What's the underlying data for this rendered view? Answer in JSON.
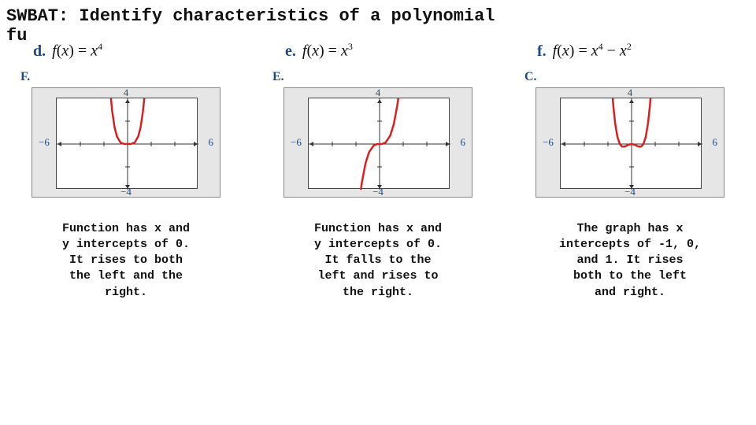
{
  "title": "SWBAT:  Identify characteristics of a polynomial\nfu",
  "columns": [
    {
      "func_letter": "d.",
      "func_html": "<i>f</i>(<i>x</i>) = <i>x</i><sup>4</sup>",
      "graph_letter": "F.",
      "axis": {
        "top": "4",
        "bottom": "−4",
        "left": "−6",
        "right": "6"
      },
      "graph": {
        "type": "curve",
        "domain": [
          -6,
          6
        ],
        "range": [
          -4,
          4
        ],
        "bg": "#e6e6e6",
        "plot_bg": "#ffffff",
        "axis_color": "#333333",
        "curve_color": "#d82020",
        "curve_width": 2.5,
        "ticks_x": [
          -4,
          -2,
          2,
          4
        ],
        "ticks_y": [
          -2,
          2
        ],
        "points": [
          [
            -1.45,
            4.4
          ],
          [
            -1.3,
            2.86
          ],
          [
            -1.1,
            1.46
          ],
          [
            -0.9,
            0.66
          ],
          [
            -0.6,
            0.13
          ],
          [
            -0.3,
            0.008
          ],
          [
            0,
            0
          ],
          [
            0.3,
            0.008
          ],
          [
            0.6,
            0.13
          ],
          [
            0.9,
            0.66
          ],
          [
            1.1,
            1.46
          ],
          [
            1.3,
            2.86
          ],
          [
            1.45,
            4.4
          ]
        ]
      },
      "desc": "Function has x and\ny intercepts of 0.\nIt rises to both\nthe left and the\nright."
    },
    {
      "func_letter": "e.",
      "func_html": "<i>f</i>(<i>x</i>) = <i>x</i><sup>3</sup>",
      "graph_letter": "E.",
      "axis": {
        "top": "4",
        "bottom": "−4",
        "left": "−6",
        "right": "6"
      },
      "graph": {
        "type": "curve",
        "domain": [
          -6,
          6
        ],
        "range": [
          -4,
          4
        ],
        "bg": "#e6e6e6",
        "plot_bg": "#ffffff",
        "axis_color": "#333333",
        "curve_color": "#d82020",
        "curve_width": 2.5,
        "ticks_x": [
          -4,
          -2,
          2,
          4
        ],
        "ticks_y": [
          -2,
          2
        ],
        "points": [
          [
            -1.65,
            -4.5
          ],
          [
            -1.5,
            -3.38
          ],
          [
            -1.2,
            -1.73
          ],
          [
            -0.9,
            -0.73
          ],
          [
            -0.5,
            -0.125
          ],
          [
            -0.2,
            -0.008
          ],
          [
            0,
            0
          ],
          [
            0.2,
            0.008
          ],
          [
            0.5,
            0.125
          ],
          [
            0.9,
            0.73
          ],
          [
            1.2,
            1.73
          ],
          [
            1.5,
            3.38
          ],
          [
            1.65,
            4.5
          ]
        ]
      },
      "desc": "Function has x and\ny intercepts of 0.\nIt falls to the\nleft and rises to\nthe right."
    },
    {
      "func_letter": "f.",
      "func_html": "<i>f</i>(<i>x</i>) = <i>x</i><sup>4</sup> − <i>x</i><sup>2</sup>",
      "graph_letter": "C.",
      "axis": {
        "top": "4",
        "bottom": "−4",
        "left": "−6",
        "right": "6"
      },
      "graph": {
        "type": "curve",
        "domain": [
          -6,
          6
        ],
        "range": [
          -4,
          4
        ],
        "bg": "#e6e6e6",
        "plot_bg": "#ffffff",
        "axis_color": "#333333",
        "curve_color": "#d82020",
        "curve_width": 2.5,
        "ticks_x": [
          -4,
          -2,
          2,
          4
        ],
        "ticks_y": [
          -2,
          2
        ],
        "points": [
          [
            -1.65,
            4.7
          ],
          [
            -1.55,
            3.37
          ],
          [
            -1.4,
            1.88
          ],
          [
            -1.2,
            0.63
          ],
          [
            -1.0,
            0.0
          ],
          [
            -0.8,
            -0.23
          ],
          [
            -0.6,
            -0.23
          ],
          [
            -0.4,
            -0.134
          ],
          [
            -0.2,
            -0.038
          ],
          [
            0,
            0
          ],
          [
            0.2,
            -0.038
          ],
          [
            0.4,
            -0.134
          ],
          [
            0.6,
            -0.23
          ],
          [
            0.8,
            -0.23
          ],
          [
            1.0,
            0.0
          ],
          [
            1.2,
            0.63
          ],
          [
            1.4,
            1.88
          ],
          [
            1.55,
            3.37
          ],
          [
            1.65,
            4.7
          ]
        ]
      },
      "desc": "The graph has x\nintercepts of -1, 0,\nand 1.  It rises\nboth to the left\nand right."
    }
  ]
}
